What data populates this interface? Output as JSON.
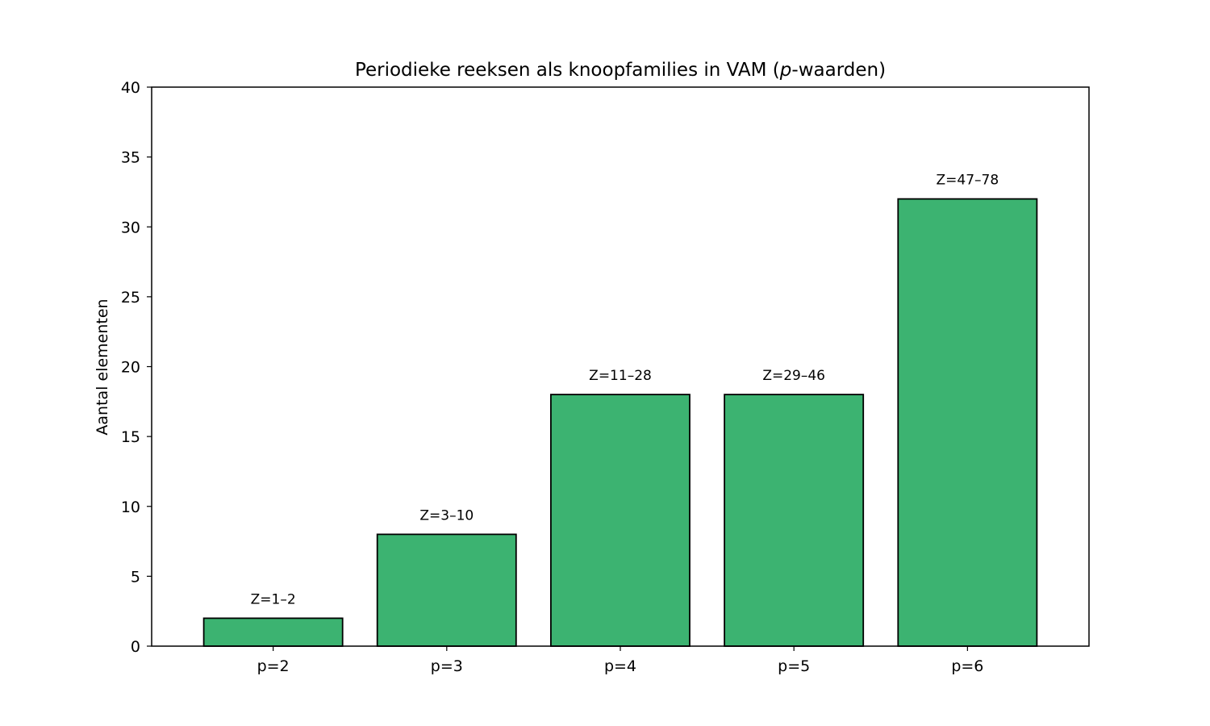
{
  "chart_data": {
    "type": "bar",
    "title": {
      "prefix": "Periodieke reeksen als knoopfamilies in VAM (",
      "italic": "p",
      "suffix": "-waarden)"
    },
    "xlabel": "",
    "ylabel": "Aantal elementen",
    "categories": [
      "p=2",
      "p=3",
      "p=4",
      "p=5",
      "p=6"
    ],
    "values": [
      2,
      8,
      18,
      18,
      32
    ],
    "data_labels": [
      "Z=1–2",
      "Z=3–10",
      "Z=11–28",
      "Z=29–46",
      "Z=47–78"
    ],
    "ylim": [
      0,
      40
    ],
    "yticks": [
      0,
      5,
      10,
      15,
      20,
      25,
      30,
      35,
      40
    ],
    "grid": false,
    "bar_color": "#3cb371",
    "edge_color": "#000000"
  }
}
